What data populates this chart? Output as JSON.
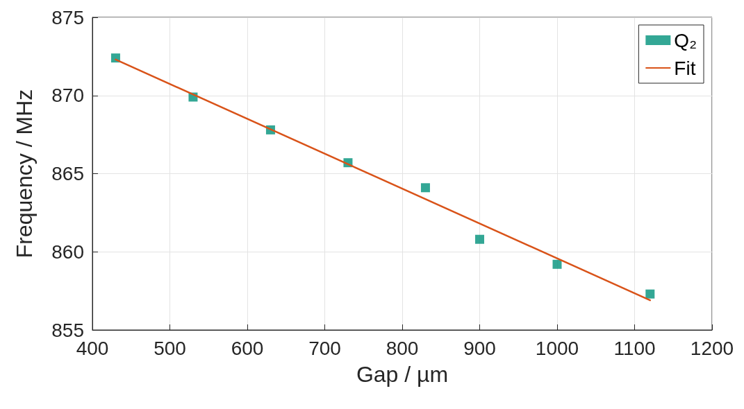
{
  "chart_data": {
    "type": "scatter",
    "xlabel": "Gap / µm",
    "ylabel": "Frequency / MHz",
    "xlim": [
      400,
      1200
    ],
    "xticks": [
      400,
      500,
      600,
      700,
      800,
      900,
      1000,
      1100,
      1200
    ],
    "ylim": [
      855,
      875
    ],
    "yticks": [
      855,
      860,
      865,
      870,
      875
    ],
    "grid": true,
    "legend": "top right",
    "series": [
      {
        "name": "Q₂",
        "marker": "square",
        "color": "#00917a",
        "x": [
          430,
          530,
          630,
          730,
          830,
          900,
          1000,
          1120
        ],
        "values": [
          872.4,
          869.9,
          867.8,
          865.7,
          864.1,
          860.8,
          859.2,
          857.3
        ]
      },
      {
        "name": "Fit",
        "type": "line",
        "marker": "none",
        "line_style": "solid",
        "color": "#d95319",
        "x": [
          430,
          1120
        ],
        "values": [
          872.3,
          856.9
        ]
      }
    ]
  }
}
